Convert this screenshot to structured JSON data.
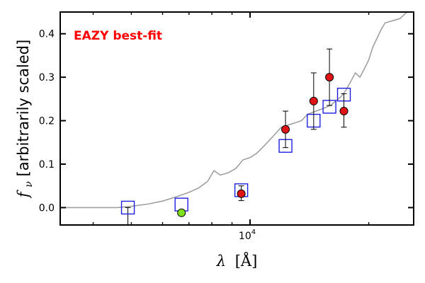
{
  "chart_data": {
    "type": "scatter",
    "title": "",
    "annotation": "EAZY best-fit",
    "xlabel": "λ [Å]",
    "ylabel": "f_ν [arbitrarily scaled]",
    "ylabel_symbol": "f",
    "ylabel_subscript": "ν",
    "ylabel_rest": " [arbitrarily scaled]",
    "xlabel_symbol": "λ",
    "xlabel_unit": "[Å]",
    "xscale": "log",
    "xlim": [
      3300,
      26000
    ],
    "ylim": [
      -0.04,
      0.45
    ],
    "x_ticks_labeled": [
      {
        "value": 10000,
        "base": "10",
        "exponent": "4"
      }
    ],
    "x_minor_ticks": [
      4000,
      5000,
      6000,
      7000,
      8000,
      9000,
      20000
    ],
    "y_ticks": [
      {
        "value": 0.0,
        "label": "0.0"
      },
      {
        "value": 0.1,
        "label": "0.1"
      },
      {
        "value": 0.2,
        "label": "0.2"
      },
      {
        "value": 0.3,
        "label": "0.3"
      },
      {
        "value": 0.4,
        "label": "0.4"
      }
    ],
    "grid": false,
    "colors": {
      "template": "#a0a0a0",
      "model_flux": "#1f1fe0",
      "detection": "#e01414",
      "upper_limit": "#7fe020",
      "annotation": "#ff0000"
    },
    "template_sed": [
      [
        3300,
        0.0
      ],
      [
        4000,
        0.0
      ],
      [
        4600,
        0.0
      ],
      [
        5000,
        0.003
      ],
      [
        5500,
        0.008
      ],
      [
        6000,
        0.015
      ],
      [
        6500,
        0.025
      ],
      [
        7000,
        0.035
      ],
      [
        7400,
        0.045
      ],
      [
        7800,
        0.06
      ],
      [
        8100,
        0.085
      ],
      [
        8400,
        0.075
      ],
      [
        8800,
        0.08
      ],
      [
        9200,
        0.09
      ],
      [
        9600,
        0.11
      ],
      [
        10000,
        0.115
      ],
      [
        10400,
        0.125
      ],
      [
        10800,
        0.14
      ],
      [
        11200,
        0.155
      ],
      [
        11600,
        0.17
      ],
      [
        12000,
        0.185
      ],
      [
        12500,
        0.19
      ],
      [
        13000,
        0.195
      ],
      [
        13500,
        0.2
      ],
      [
        14000,
        0.215
      ],
      [
        14500,
        0.22
      ],
      [
        15000,
        0.225
      ],
      [
        15500,
        0.23
      ],
      [
        16000,
        0.235
      ],
      [
        16500,
        0.245
      ],
      [
        17000,
        0.255
      ],
      [
        17500,
        0.27
      ],
      [
        18000,
        0.29
      ],
      [
        18500,
        0.31
      ],
      [
        19000,
        0.3
      ],
      [
        19500,
        0.32
      ],
      [
        20000,
        0.34
      ],
      [
        20500,
        0.37
      ],
      [
        21000,
        0.39
      ],
      [
        21500,
        0.41
      ],
      [
        22000,
        0.425
      ],
      [
        23000,
        0.43
      ],
      [
        24000,
        0.435
      ],
      [
        25000,
        0.45
      ],
      [
        26000,
        0.45
      ]
    ],
    "model_fluxes": [
      {
        "x": 4900,
        "y": 0.0
      },
      {
        "x": 6700,
        "y": 0.007
      },
      {
        "x": 9500,
        "y": 0.04
      },
      {
        "x": 12300,
        "y": 0.142
      },
      {
        "x": 14500,
        "y": 0.2
      },
      {
        "x": 15900,
        "y": 0.232
      },
      {
        "x": 17300,
        "y": 0.26
      }
    ],
    "detections": [
      {
        "x": 9500,
        "y": 0.032,
        "yerr_low": 0.016,
        "yerr_high": 0.018
      },
      {
        "x": 12300,
        "y": 0.18,
        "yerr_low": 0.042,
        "yerr_high": 0.042
      },
      {
        "x": 14500,
        "y": 0.245,
        "yerr_low": 0.065,
        "yerr_high": 0.065
      },
      {
        "x": 15900,
        "y": 0.3,
        "yerr_low": 0.065,
        "yerr_high": 0.065
      },
      {
        "x": 17300,
        "y": 0.222,
        "yerr_low": 0.037,
        "yerr_high": 0.04
      }
    ],
    "upper_limits": [
      {
        "x": 6700,
        "y": -0.012
      }
    ],
    "limit_bars": [
      {
        "x": 4900,
        "y_top": 0.0,
        "y_bottom": -0.04
      }
    ]
  }
}
